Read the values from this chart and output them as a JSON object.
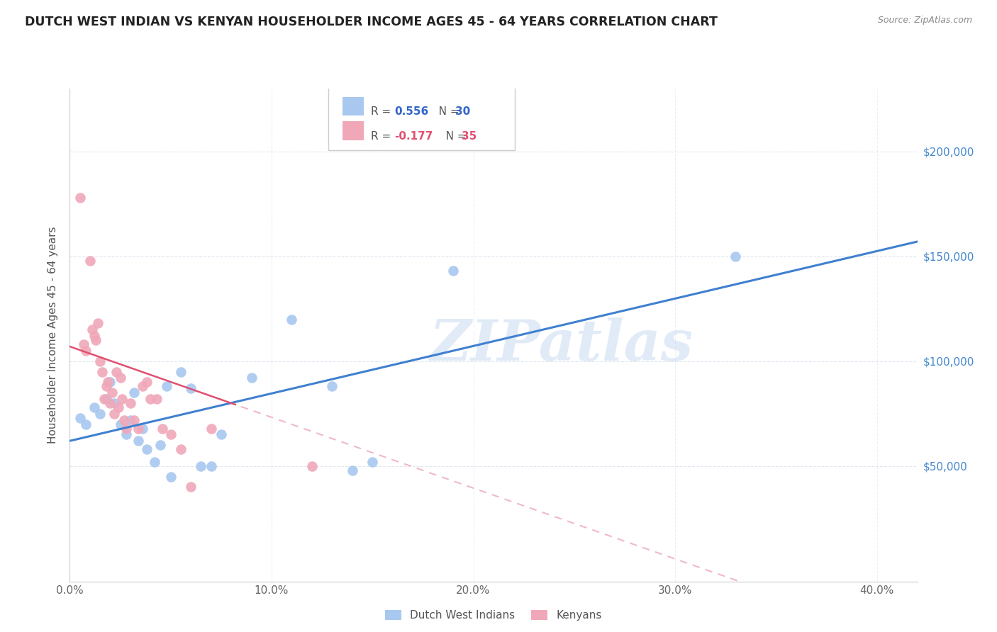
{
  "title": "DUTCH WEST INDIAN VS KENYAN HOUSEHOLDER INCOME AGES 45 - 64 YEARS CORRELATION CHART",
  "source": "Source: ZipAtlas.com",
  "ylabel": "Householder Income Ages 45 - 64 years",
  "x_tick_labels": [
    "0.0%",
    "10.0%",
    "20.0%",
    "30.0%",
    "40.0%"
  ],
  "y_tick_labels": [
    "$50,000",
    "$100,000",
    "$150,000",
    "$200,000"
  ],
  "xlim": [
    0.0,
    0.42
  ],
  "ylim": [
    -5000,
    230000
  ],
  "legend1_label": "Dutch West Indians",
  "legend2_label": "Kenyans",
  "legend_r1": "R = ",
  "legend_v1": "0.556",
  "legend_n1_label": "N = ",
  "legend_n1": "30",
  "legend_r2": "R = ",
  "legend_v2": "-0.177",
  "legend_n2_label": "N = ",
  "legend_n2": "35",
  "color_blue": "#a8c8f0",
  "color_pink": "#f0a8b8",
  "trendline_blue": "#4080d0",
  "trendline_pink_solid": "#e05070",
  "trendline_pink_dashed": "#f0b8c8",
  "watermark": "ZIPatlas",
  "blue_x": [
    0.005,
    0.008,
    0.012,
    0.015,
    0.018,
    0.02,
    0.022,
    0.025,
    0.028,
    0.03,
    0.032,
    0.034,
    0.036,
    0.038,
    0.042,
    0.045,
    0.048,
    0.05,
    0.055,
    0.06,
    0.065,
    0.07,
    0.075,
    0.09,
    0.11,
    0.13,
    0.14,
    0.15,
    0.19,
    0.33
  ],
  "blue_y": [
    73000,
    70000,
    78000,
    75000,
    82000,
    90000,
    80000,
    70000,
    65000,
    72000,
    85000,
    62000,
    68000,
    58000,
    52000,
    60000,
    88000,
    45000,
    95000,
    87000,
    50000,
    50000,
    65000,
    92000,
    120000,
    88000,
    48000,
    52000,
    143000,
    150000
  ],
  "pink_x": [
    0.005,
    0.007,
    0.008,
    0.01,
    0.011,
    0.012,
    0.013,
    0.014,
    0.015,
    0.016,
    0.017,
    0.018,
    0.019,
    0.02,
    0.021,
    0.022,
    0.023,
    0.024,
    0.025,
    0.026,
    0.027,
    0.028,
    0.03,
    0.032,
    0.034,
    0.036,
    0.038,
    0.04,
    0.043,
    0.046,
    0.05,
    0.055,
    0.06,
    0.07,
    0.12
  ],
  "pink_y": [
    178000,
    108000,
    105000,
    148000,
    115000,
    112000,
    110000,
    118000,
    100000,
    95000,
    82000,
    88000,
    90000,
    80000,
    85000,
    75000,
    95000,
    78000,
    92000,
    82000,
    72000,
    68000,
    80000,
    72000,
    68000,
    88000,
    90000,
    82000,
    82000,
    68000,
    65000,
    58000,
    40000,
    68000,
    50000
  ]
}
